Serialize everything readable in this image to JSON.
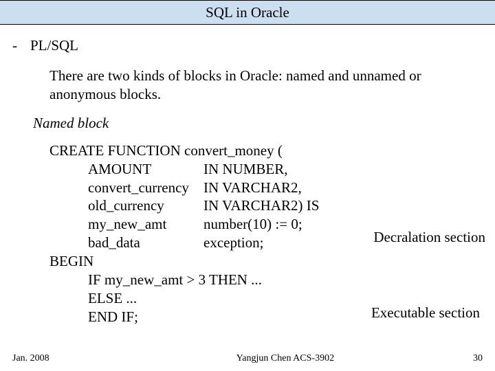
{
  "header": {
    "title": "SQL in Oracle"
  },
  "bullet": {
    "marker": "-",
    "text": "PL/SQL"
  },
  "intro": "There are two kinds of blocks in Oracle: named and unnamed or anonymous blocks.",
  "subheading": "Named block",
  "code": {
    "line1": "CREATE FUNCTION convert_money (",
    "params": [
      {
        "name": "AMOUNT",
        "type": "IN NUMBER,"
      },
      {
        "name": "convert_currency",
        "type": "IN VARCHAR2,"
      },
      {
        "name": "old_currency",
        "type": "IN VARCHAR2)  IS"
      },
      {
        "name": "my_new_amt",
        "type": "number(10) := 0;"
      },
      {
        "name": "bad_data",
        "type": "exception;"
      }
    ],
    "line_begin": "BEGIN",
    "line_if": "IF my_new_amt > 3 THEN ...",
    "line_else": "ELSE ...",
    "line_endif": "END IF;"
  },
  "annotations": {
    "declaration": "Decralation section",
    "executable": "Executable section"
  },
  "footer": {
    "date": "Jan. 2008",
    "center": "Yangjun Chen        ACS-3902",
    "page": "30"
  },
  "colors": {
    "header_bg": "#ccdff1",
    "border": "#000000",
    "text": "#000000",
    "background": "#ffffff"
  }
}
